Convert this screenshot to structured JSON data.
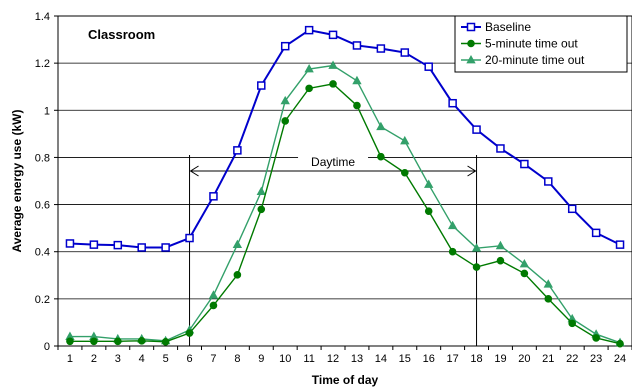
{
  "chart_data": {
    "type": "line",
    "title": "Classroom",
    "xlabel": "Time of day",
    "ylabel": "Average energy use (kW)",
    "x": [
      1,
      2,
      3,
      4,
      5,
      6,
      7,
      8,
      9,
      10,
      11,
      12,
      13,
      14,
      15,
      16,
      17,
      18,
      19,
      20,
      21,
      22,
      23,
      24
    ],
    "xlim": [
      0.5,
      24.5
    ],
    "ylim": [
      0,
      1.4
    ],
    "yticks": [
      0,
      0.2,
      0.4,
      0.6,
      0.8,
      1,
      1.2,
      1.4
    ],
    "grid": "horizontal",
    "legend_position": "top-right",
    "series": [
      {
        "name": "Baseline",
        "color": "#0000cc",
        "marker": "square",
        "values": [
          0.435,
          0.43,
          0.428,
          0.418,
          0.418,
          0.458,
          0.635,
          0.83,
          1.105,
          1.272,
          1.34,
          1.32,
          1.275,
          1.262,
          1.245,
          1.185,
          1.03,
          0.918,
          0.838,
          0.772,
          0.698,
          0.582,
          0.48,
          0.43
        ]
      },
      {
        "name": "5-minute time out",
        "color": "#007a00",
        "marker": "circle",
        "values": [
          0.02,
          0.02,
          0.02,
          0.022,
          0.018,
          0.055,
          0.172,
          0.302,
          0.58,
          0.955,
          1.093,
          1.112,
          1.02,
          0.803,
          0.735,
          0.572,
          0.4,
          0.335,
          0.362,
          0.308,
          0.2,
          0.096,
          0.034,
          0.01
        ]
      },
      {
        "name": "20-minute time out",
        "color": "#33a06a",
        "marker": "triangle",
        "values": [
          0.04,
          0.04,
          0.03,
          0.03,
          0.022,
          0.068,
          0.215,
          0.43,
          0.655,
          1.04,
          1.175,
          1.19,
          1.125,
          0.93,
          0.87,
          0.685,
          0.51,
          0.415,
          0.425,
          0.348,
          0.262,
          0.115,
          0.05,
          0.014
        ]
      }
    ],
    "annotations": [
      {
        "label": "Daytime",
        "x_start": 6,
        "x_end": 18
      }
    ]
  }
}
